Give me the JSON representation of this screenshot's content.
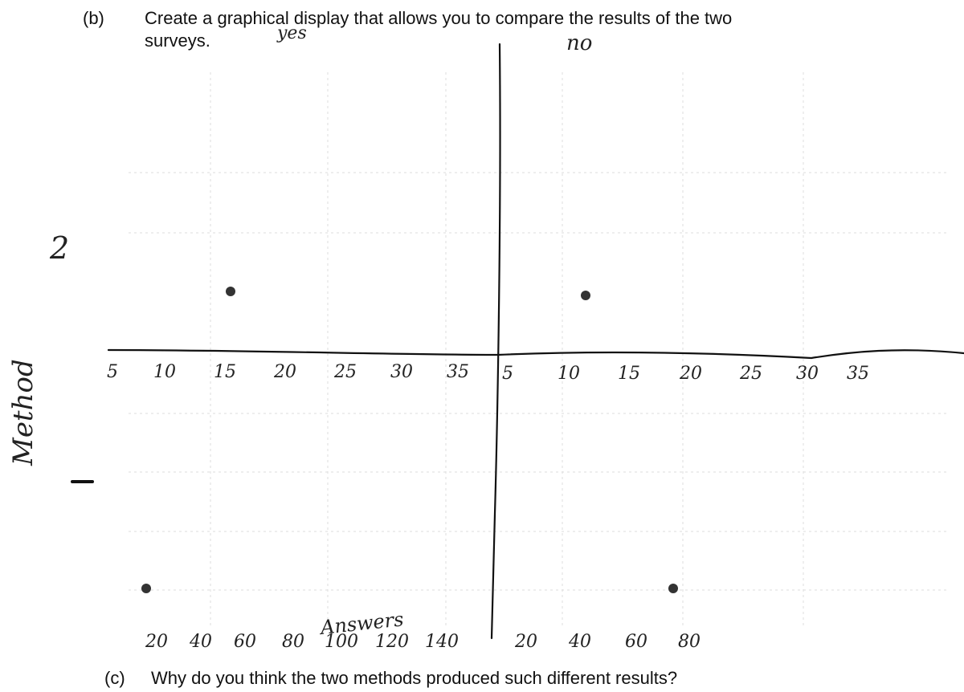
{
  "question_b": {
    "label": "(b)",
    "line_1": "Create a graphical display that allows you to compare the results of the two",
    "line_2": "surveys."
  },
  "handwriting": {
    "yes_label": "yes",
    "no_label": "no",
    "count_label": "2",
    "side_label": "Method",
    "axis_label": "Answers",
    "upper_scale_left": [
      "5",
      "10",
      "15",
      "20",
      "25",
      "30",
      "35"
    ],
    "upper_scale_right": [
      "5",
      "10",
      "15",
      "20",
      "25",
      "30",
      "35"
    ],
    "lower_scale_left": [
      "20",
      "40",
      "60",
      "80",
      "100",
      "120",
      "140"
    ],
    "lower_scale_right": [
      "20",
      "40",
      "60",
      "80"
    ]
  },
  "question_c": {
    "label": "(c)",
    "text": "Why do you think the two methods produced such different results?"
  }
}
